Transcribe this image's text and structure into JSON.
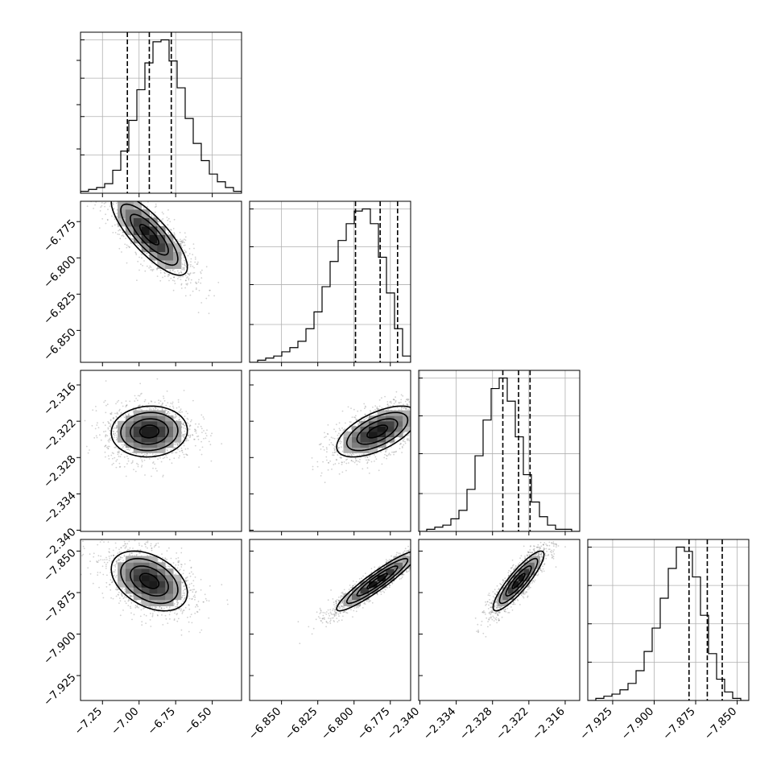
{
  "chart_data": {
    "type": "corner",
    "title": "",
    "n_params": 4,
    "colors": {
      "ink": "#000000",
      "grid": "#b0b0b0",
      "points": "#7a7a7a"
    },
    "params": [
      {
        "label": "",
        "range": [
          -7.4,
          -6.3
        ],
        "ticks": [
          -7.25,
          -7.0,
          -6.75,
          -6.5
        ],
        "tick_labels": [
          "−7.25",
          "−7.00",
          "−6.75",
          "−6.50"
        ],
        "mean": -6.93,
        "sd": 0.13,
        "quantiles": [
          -7.08,
          -6.93,
          -6.78
        ]
      },
      {
        "label": "",
        "range": [
          -6.872,
          -6.761
        ],
        "ticks": [
          -6.85,
          -6.825,
          -6.8,
          -6.775
        ],
        "tick_labels": [
          "−6.850",
          "−6.825",
          "−6.800",
          "−6.775"
        ],
        "mean": -6.784,
        "sd": 0.014,
        "quantiles": [
          -6.799,
          -6.782,
          -6.77
        ]
      },
      {
        "label": "",
        "range": [
          -2.3402,
          -2.3136
        ],
        "ticks": [
          -2.34,
          -2.334,
          -2.328,
          -2.322,
          -2.316
        ],
        "tick_labels": [
          "−2.340",
          "−2.334",
          "−2.328",
          "−2.322",
          "−2.316"
        ],
        "mean": -2.3237,
        "sd": 0.0021,
        "quantiles": [
          -2.3263,
          -2.3237,
          -2.3218
        ]
      },
      {
        "label": "",
        "range": [
          -7.94,
          -7.843
        ],
        "ticks": [
          -7.925,
          -7.9,
          -7.875,
          -7.85
        ],
        "tick_labels": [
          "−7.925",
          "−7.900",
          "−7.875",
          "−7.850"
        ],
        "mean": -7.868,
        "sd": 0.009,
        "quantiles": [
          -7.879,
          -7.868,
          -7.859
        ]
      }
    ],
    "histograms": [
      {
        "param": 0,
        "edges_start": -7.4,
        "bin_width": 0.055,
        "counts": [
          1,
          2,
          3,
          5,
          12,
          22,
          38,
          54,
          68,
          79,
          80,
          69,
          55,
          39,
          26,
          17,
          10,
          6,
          3,
          1
        ]
      },
      {
        "param": 1,
        "edges_start": -6.872,
        "bin_width": 0.00555,
        "counts": [
          0,
          1,
          2,
          3,
          5,
          7,
          10,
          16,
          24,
          36,
          48,
          58,
          66,
          72,
          73,
          66,
          50,
          33,
          16,
          3
        ]
      },
      {
        "param": 2,
        "edges_start": -2.3402,
        "bin_width": 0.00133,
        "counts": [
          0,
          1,
          2,
          3,
          6,
          10,
          20,
          36,
          53,
          68,
          73,
          62,
          45,
          27,
          14,
          7,
          3,
          1,
          1,
          0
        ]
      },
      {
        "param": 3,
        "edges_start": -7.94,
        "bin_width": 0.00485,
        "counts": [
          0,
          1,
          2,
          3,
          5,
          8,
          14,
          23,
          34,
          48,
          62,
          72,
          70,
          58,
          40,
          22,
          10,
          4,
          1,
          0
        ]
      }
    ],
    "correlations": [
      {
        "row": 1,
        "col": 0,
        "rho": -0.8
      },
      {
        "row": 2,
        "col": 0,
        "rho": 0.05
      },
      {
        "row": 2,
        "col": 1,
        "rho": 0.6
      },
      {
        "row": 3,
        "col": 0,
        "rho": -0.4
      },
      {
        "row": 3,
        "col": 1,
        "rho": 0.93
      },
      {
        "row": 3,
        "col": 2,
        "rho": 0.88
      }
    ],
    "contour_levels_sigma": [
      0.5,
      1.0,
      1.5,
      2.0
    ],
    "n_scatter_points": 1500,
    "grid": true
  }
}
